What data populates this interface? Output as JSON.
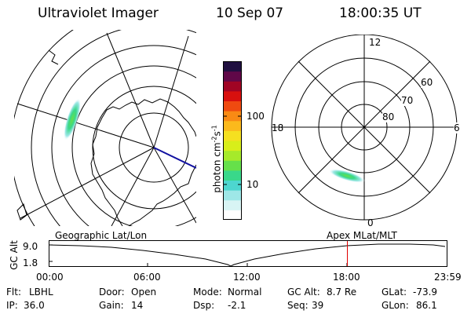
{
  "header": {
    "title": "Ultraviolet Imager",
    "date": "10 Sep 07",
    "time": "18:00:35 UT"
  },
  "colorbar": {
    "unit_label": "photon cm",
    "unit_exp1": "-2",
    "unit_s": "s",
    "unit_exp2": "-1",
    "ticks": [
      "100",
      "10"
    ],
    "colors": [
      "#ffffff",
      "#d8f4f4",
      "#9ee7e7",
      "#4dd6cf",
      "#39d88a",
      "#66e04a",
      "#a6ea2a",
      "#d8ee1a",
      "#f5e020",
      "#fbb91c",
      "#f98a14",
      "#ef4a10",
      "#d8100e",
      "#a00424",
      "#600848",
      "#201040"
    ]
  },
  "left_map": {
    "label": "Geographic Lat/Lon"
  },
  "right_map": {
    "label": "Apex  MLat/MLT",
    "mlt_labels": [
      "12",
      "6",
      "0",
      "18"
    ],
    "lat_labels": [
      "60",
      "70",
      "80"
    ]
  },
  "timeline": {
    "ylabel": "GC Alt",
    "yticks": [
      "9.0",
      "1.8"
    ],
    "xticks": [
      "00:00",
      "06:00",
      "12:00",
      "18:00",
      "23:59"
    ],
    "marker_color": "#e00000",
    "marker_time_hours": 18.01
  },
  "info": {
    "flt_label": "Flt:",
    "flt_value": "LBHL",
    "ip_label": "IP:",
    "ip_value": "36.0",
    "door_label": "Door:",
    "door_value": "Open",
    "gain_label": "Gain:",
    "gain_value": "14",
    "mode_label": "Mode:",
    "mode_value": "Normal",
    "dsp_label": "Dsp:",
    "dsp_value": "-2.1",
    "gcalt_label": "GC Alt:",
    "gcalt_value": "8.7 Re",
    "seq_label": "Seq:",
    "seq_value": "39",
    "glat_label": "GLat:",
    "glat_value": "-73.9",
    "glon_label": "GLon:",
    "glon_value": "86.1"
  }
}
